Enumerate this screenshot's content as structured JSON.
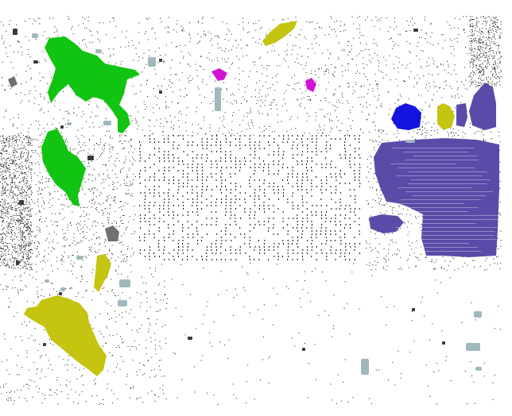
{
  "map": {
    "background": "#ffffff",
    "point_color": "#111111",
    "legend": [],
    "labels": []
  },
  "segments": [
    {
      "name": "green-region-upper-left",
      "color": "#11c411"
    },
    {
      "name": "green-region-left",
      "color": "#11c411"
    },
    {
      "name": "olive-region-lower-left",
      "color": "#c4c411"
    },
    {
      "name": "olive-region-small",
      "color": "#c4c411"
    },
    {
      "name": "olive-region-top",
      "color": "#c4c411"
    },
    {
      "name": "olive-region-right",
      "color": "#c4c411"
    },
    {
      "name": "purple-region-right",
      "color": "#5a4ba8"
    },
    {
      "name": "purple-region-upper-right",
      "color": "#5a4ba8"
    },
    {
      "name": "blue-region-right",
      "color": "#1414e0"
    },
    {
      "name": "magenta-region-top-left",
      "color": "#d414d4"
    },
    {
      "name": "magenta-region-top",
      "color": "#d414d4"
    },
    {
      "name": "grey-region-small",
      "color": "#707070"
    },
    {
      "name": "light-teal-fragments",
      "color": "#9fb8bc"
    }
  ]
}
